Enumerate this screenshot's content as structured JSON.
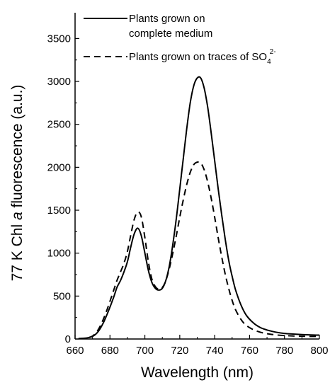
{
  "chart_data": {
    "type": "line",
    "xlabel": "Wavelength (nm)",
    "ylabel_parts": [
      "77 K Chl ",
      "a",
      " fluorescence (a.u.)"
    ],
    "xlim": [
      660,
      800
    ],
    "ylim": [
      0,
      3800
    ],
    "x_ticks": [
      660,
      680,
      700,
      720,
      740,
      760,
      780,
      800
    ],
    "y_ticks": [
      0,
      500,
      1000,
      1500,
      2000,
      2500,
      3000,
      3500
    ],
    "grid": false,
    "legend_position": "top-left",
    "series": [
      {
        "name": "Plants grown on complete medium",
        "name_lines": [
          "Plants grown on",
          "complete medium"
        ],
        "style": "solid",
        "color": "#000000",
        "x": [
          662,
          666,
          670,
          673,
          676,
          679,
          682,
          684,
          686,
          688,
          690,
          692,
          694,
          696,
          698,
          700,
          702,
          704,
          706,
          708,
          710,
          712,
          714,
          716,
          718,
          720,
          722,
          724,
          726,
          728,
          730,
          732,
          734,
          736,
          738,
          740,
          742,
          744,
          746,
          748,
          750,
          752,
          755,
          758,
          762,
          766,
          770,
          775,
          780,
          785,
          790,
          795,
          800
        ],
        "y": [
          5,
          10,
          30,
          80,
          180,
          320,
          480,
          600,
          680,
          780,
          900,
          1080,
          1230,
          1290,
          1200,
          1000,
          800,
          660,
          590,
          570,
          590,
          680,
          850,
          1100,
          1400,
          1750,
          2100,
          2450,
          2750,
          2950,
          3040,
          3040,
          2920,
          2700,
          2400,
          2080,
          1750,
          1450,
          1170,
          920,
          730,
          570,
          400,
          280,
          190,
          135,
          105,
          80,
          65,
          58,
          52,
          48,
          45
        ]
      },
      {
        "name": "Plants grown on traces of SO42-",
        "name_text": "Plants grown on traces of SO",
        "name_sub": "4",
        "name_sup": "2-",
        "style": "dashed",
        "color": "#000000",
        "x": [
          662,
          666,
          670,
          673,
          676,
          679,
          682,
          684,
          686,
          688,
          690,
          692,
          694,
          696,
          698,
          700,
          702,
          704,
          706,
          708,
          710,
          712,
          714,
          716,
          718,
          720,
          722,
          724,
          726,
          728,
          730,
          732,
          734,
          736,
          738,
          740,
          742,
          744,
          746,
          748,
          750,
          752,
          755,
          758,
          762,
          766,
          770,
          775,
          780,
          785,
          790,
          795,
          800
        ],
        "y": [
          5,
          10,
          35,
          100,
          220,
          380,
          560,
          680,
          780,
          880,
          1020,
          1220,
          1400,
          1480,
          1420,
          1180,
          900,
          700,
          610,
          580,
          600,
          680,
          820,
          1000,
          1200,
          1420,
          1620,
          1800,
          1940,
          2030,
          2060,
          2050,
          1970,
          1830,
          1640,
          1420,
          1180,
          960,
          760,
          590,
          450,
          340,
          230,
          160,
          110,
          80,
          62,
          48,
          40,
          35,
          32,
          30,
          30
        ]
      }
    ]
  }
}
